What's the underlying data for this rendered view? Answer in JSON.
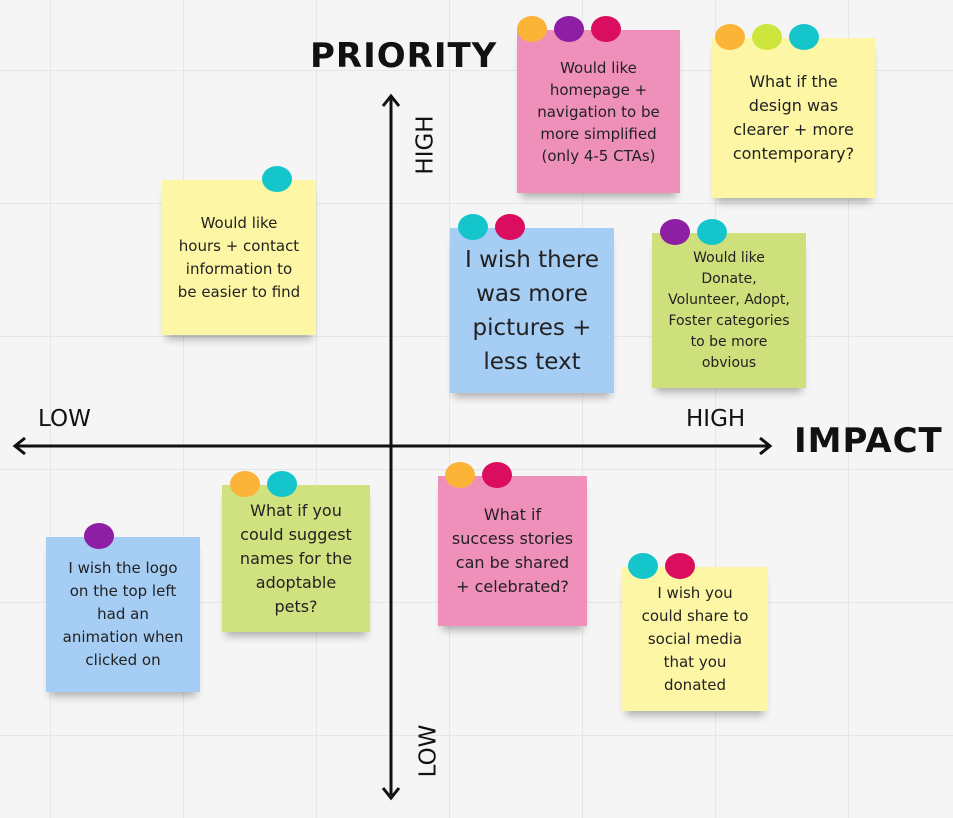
{
  "axes": {
    "title_y": "PRIORITY",
    "title_x": "IMPACT",
    "y_high": "HIGH",
    "y_low": "LOW",
    "x_low": "LOW",
    "x_high": "HIGH"
  },
  "notes": [
    {
      "color": "#ef90bb",
      "dots": [
        "#fbb338",
        "#8e1fa4",
        "#da0d5e"
      ],
      "lines": [
        "Would like",
        "homepage +",
        "navigation to be",
        "more simplified",
        "(only 4-5 CTAs)"
      ]
    },
    {
      "color": "#fdf6a4",
      "dots": [
        "#fbb338",
        "#cde63d",
        "#14c6cc"
      ],
      "lines": [
        "What if the",
        "design was",
        "clearer + more",
        "contemporary?"
      ]
    },
    {
      "color": "#fdf6a4",
      "dots": [
        "#14c6cc"
      ],
      "lines": [
        "Would like",
        "hours + contact",
        "information to",
        "be easier to find"
      ]
    },
    {
      "color": "#a6cdf4",
      "dots": [
        "#14c6cc",
        "#da0d5e"
      ],
      "lines": [
        "I wish there",
        "was more",
        "pictures +",
        "less text"
      ]
    },
    {
      "color": "#cde07b",
      "dots": [
        "#8e1fa4",
        "#14c6cc"
      ],
      "lines": [
        "Would like",
        "Donate,",
        "Volunteer, Adopt,",
        "Foster categories",
        "to be more",
        "obvious"
      ]
    },
    {
      "color": "#cfe27f",
      "dots": [
        "#fbb338",
        "#14c6cc"
      ],
      "lines": [
        "What if you",
        "could suggest",
        "names for the",
        "adoptable",
        "pets?"
      ]
    },
    {
      "color": "#a6cdf4",
      "dots": [
        "#8e1fa4"
      ],
      "lines": [
        "I wish the logo",
        "on the top left",
        "had an",
        "animation when",
        "clicked on"
      ]
    },
    {
      "color": "#ef90bb",
      "dots": [
        "#fbb338",
        "#da0d5e"
      ],
      "lines": [
        "What if",
        "success stories",
        "can be shared",
        "+ celebrated?"
      ]
    },
    {
      "color": "#fdf6a4",
      "dots": [
        "#14c6cc",
        "#da0d5e"
      ],
      "lines": [
        "I wish you",
        "could share to",
        "social media",
        "that you",
        "donated"
      ]
    }
  ]
}
